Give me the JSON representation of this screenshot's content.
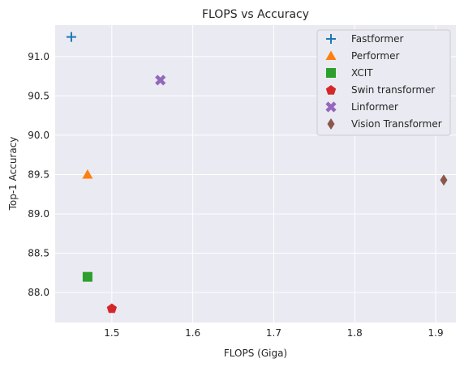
{
  "chart_data": {
    "type": "scatter",
    "title": "FLOPS vs Accuracy",
    "xlabel": "FLOPS (Giga)",
    "ylabel": "Top-1 Accuracy",
    "xlim": [
      1.43,
      1.925
    ],
    "ylim": [
      87.62,
      91.4
    ],
    "xticks": [
      1.5,
      1.6,
      1.7,
      1.8,
      1.9
    ],
    "xtick_labels": [
      "1.5",
      "1.6",
      "1.7",
      "1.8",
      "1.9"
    ],
    "yticks": [
      88.0,
      88.5,
      89.0,
      89.5,
      90.0,
      90.5,
      91.0
    ],
    "ytick_labels": [
      "88.0",
      "88.5",
      "89.0",
      "89.5",
      "90.0",
      "90.5",
      "91.0"
    ],
    "grid": true,
    "legend_position": "top-right",
    "series": [
      {
        "name": "Fastformer",
        "marker": "plus",
        "color": "#1f77b4",
        "x": [
          1.45
        ],
        "y": [
          91.25
        ]
      },
      {
        "name": "Performer",
        "marker": "triangle",
        "color": "#ff7f0e",
        "x": [
          1.47
        ],
        "y": [
          89.5
        ]
      },
      {
        "name": "XCIT",
        "marker": "square",
        "color": "#2ca02c",
        "x": [
          1.47
        ],
        "y": [
          88.2
        ]
      },
      {
        "name": "Swin transformer",
        "marker": "pentagon",
        "color": "#d62728",
        "x": [
          1.5
        ],
        "y": [
          87.8
        ]
      },
      {
        "name": "Linformer",
        "marker": "x",
        "color": "#9467bd",
        "x": [
          1.56
        ],
        "y": [
          90.7
        ]
      },
      {
        "name": "Vision Transformer",
        "marker": "diamond",
        "color": "#8c564b",
        "x": [
          1.91
        ],
        "y": [
          89.43
        ]
      }
    ]
  }
}
